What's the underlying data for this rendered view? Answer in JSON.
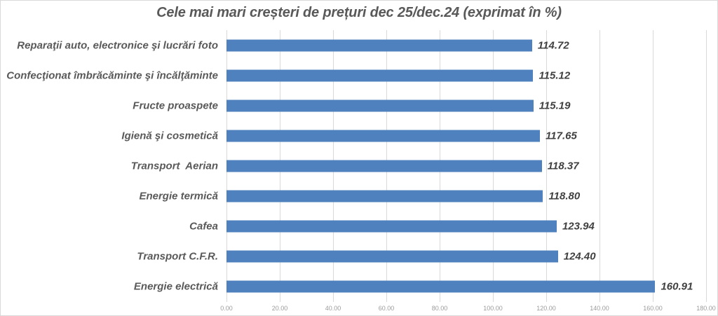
{
  "chart_data": {
    "type": "bar",
    "orientation": "horizontal",
    "title": "Cele mai mari creșteri de prețuri dec 25/dec.24 (exprimat în %)",
    "categories": [
      "Reparaţii auto, electronice şi lucrări foto",
      "Confecţionat îmbrăcăminte şi încălţăminte",
      "Fructe proaspete",
      "Igienă şi cosmetică",
      "Transport  Aerian",
      "Energie termică",
      "Cafea",
      "Transport C.F.R.",
      "Energie electrică"
    ],
    "values": [
      114.72,
      115.12,
      115.19,
      117.65,
      118.37,
      118.8,
      123.94,
      124.4,
      160.91
    ],
    "value_labels": [
      "114.72",
      "115.12",
      "115.19",
      "117.65",
      "118.37",
      "118.80",
      "123.94",
      "124.40",
      "160.91"
    ],
    "xlim": [
      0,
      180
    ],
    "x_ticks": [
      "0.00",
      "20.00",
      "40.00",
      "60.00",
      "80.00",
      "100.00",
      "120.00",
      "140.00",
      "160.00",
      "180.00"
    ],
    "xlabel": "",
    "ylabel": "",
    "grid": true,
    "legend": false,
    "bar_color": "#4e81bd",
    "grid_color": "#d9d9d9",
    "title_color": "#595959",
    "category_label_color": "#595959",
    "value_label_color": "#404040",
    "tick_label_color": "#9b9b9b"
  }
}
